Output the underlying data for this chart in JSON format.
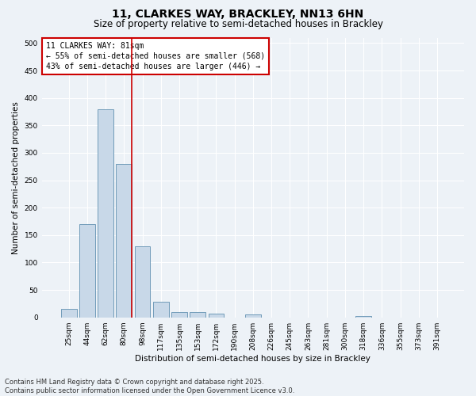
{
  "title_line1": "11, CLARKES WAY, BRACKLEY, NN13 6HN",
  "title_line2": "Size of property relative to semi-detached houses in Brackley",
  "xlabel": "Distribution of semi-detached houses by size in Brackley",
  "ylabel": "Number of semi-detached properties",
  "categories": [
    "25sqm",
    "44sqm",
    "62sqm",
    "80sqm",
    "98sqm",
    "117sqm",
    "135sqm",
    "153sqm",
    "172sqm",
    "190sqm",
    "208sqm",
    "226sqm",
    "245sqm",
    "263sqm",
    "281sqm",
    "300sqm",
    "318sqm",
    "336sqm",
    "355sqm",
    "373sqm",
    "391sqm"
  ],
  "values": [
    16,
    170,
    380,
    280,
    130,
    28,
    10,
    9,
    7,
    0,
    6,
    0,
    0,
    0,
    0,
    0,
    3,
    0,
    0,
    0,
    0
  ],
  "bar_color": "#c8d8e8",
  "bar_edge_color": "#6090b0",
  "annotation_text": "11 CLARKES WAY: 81sqm\n← 55% of semi-detached houses are smaller (568)\n43% of semi-detached houses are larger (446) →",
  "annotation_box_color": "white",
  "annotation_box_edge_color": "#cc0000",
  "vline_color": "#cc0000",
  "ylim": [
    0,
    510
  ],
  "yticks": [
    0,
    50,
    100,
    150,
    200,
    250,
    300,
    350,
    400,
    450,
    500
  ],
  "footer_line1": "Contains HM Land Registry data © Crown copyright and database right 2025.",
  "footer_line2": "Contains public sector information licensed under the Open Government Licence v3.0.",
  "background_color": "#edf2f7",
  "grid_color": "#ffffff",
  "title_fontsize": 10,
  "subtitle_fontsize": 8.5,
  "axis_label_fontsize": 7.5,
  "tick_fontsize": 6.5,
  "annotation_fontsize": 7,
  "footer_fontsize": 6
}
